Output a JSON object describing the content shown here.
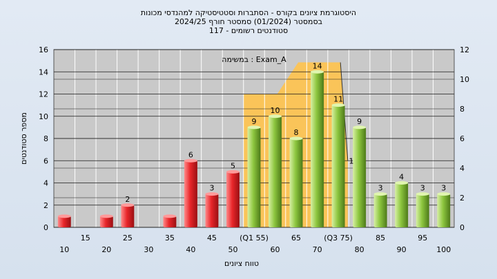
{
  "chart_data": {
    "type": "bar",
    "title_lines": [
      "היסטוגרמת ציונים בקורס - הסתברות וסטטיסטיקה למהנדסי מכונות",
      "בסמסטר  (01/2024)  סמסטר חורף 2024/25",
      "סטודנטים רשומים - 117"
    ],
    "legend_text": "במשימה : Exam_A",
    "xlabel": "טווח ציונים",
    "ylabel": "מספר סטודנטים",
    "ylim": [
      0,
      16
    ],
    "yticks": [
      0,
      2,
      4,
      6,
      8,
      10,
      12,
      14,
      16
    ],
    "y2lim": [
      0,
      12
    ],
    "y2ticks": [
      0,
      2,
      4,
      6,
      8,
      10,
      12
    ],
    "categories": [
      "10",
      "15",
      "20",
      "25",
      "30",
      "35",
      "40",
      "45",
      "50",
      "(Q1 55)",
      "60",
      "65",
      "70",
      "(Q3 75)",
      "80",
      "85",
      "90",
      "95",
      "100"
    ],
    "values": [
      1,
      0,
      1,
      2,
      0,
      1,
      6,
      3,
      5,
      9,
      10,
      8,
      14,
      11,
      9,
      3,
      4,
      3,
      3
    ],
    "value_labels": [
      "",
      "",
      "",
      "2",
      "",
      "",
      "6",
      "3",
      "5",
      "9",
      "10",
      "8",
      "14",
      "11",
      "9",
      "3",
      "4",
      "3",
      "3"
    ],
    "bar_groups": [
      "red",
      "red",
      "red",
      "red",
      "red",
      "red",
      "red",
      "red",
      "red",
      "green",
      "green",
      "green",
      "green",
      "green",
      "green",
      "green",
      "green",
      "green",
      "green"
    ],
    "colors": {
      "red": "#e8262a",
      "green": "#8dc63f",
      "band": "#ffc34d",
      "plot_bg": "#c9c9c9"
    },
    "iqr_band": {
      "from_category": "(Q1 55)",
      "to_category": "(Q3 75)"
    },
    "extra_marker": {
      "category": "80",
      "value": 6,
      "label": "1"
    },
    "grid": true
  }
}
